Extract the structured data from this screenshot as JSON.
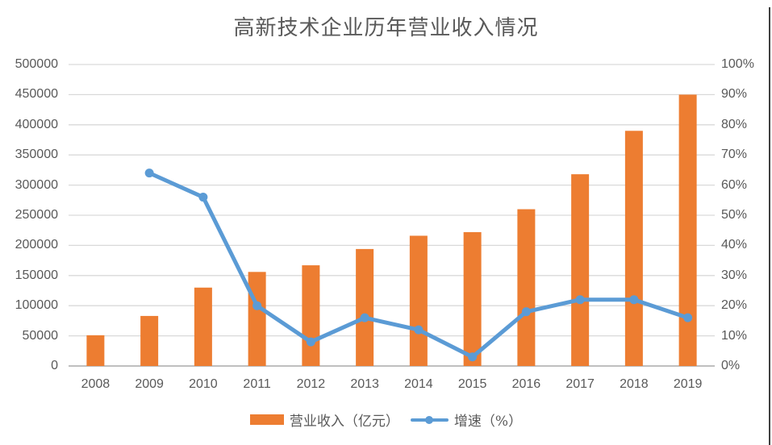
{
  "title": "高新技术企业历年营业收入情况",
  "chart_data": {
    "type": "combo-bar-line",
    "title": "高新技术企业历年营业收入情况",
    "categories": [
      "2008",
      "2009",
      "2010",
      "2011",
      "2012",
      "2013",
      "2014",
      "2015",
      "2016",
      "2017",
      "2018",
      "2019"
    ],
    "series": [
      {
        "name": "营业收入（亿元）",
        "type": "bar",
        "axis": "left",
        "color": "#ED7D31",
        "values": [
          51000,
          83000,
          130000,
          156000,
          167000,
          194000,
          216000,
          222000,
          260000,
          318000,
          390000,
          450000
        ]
      },
      {
        "name": "增速（%）",
        "type": "line",
        "axis": "right",
        "color": "#5B9BD5",
        "values": [
          null,
          64,
          56,
          20,
          8,
          16,
          12,
          3,
          18,
          22,
          22,
          16
        ]
      }
    ],
    "left_axis": {
      "min": 0,
      "max": 500000,
      "step": 50000,
      "tick_labels": [
        "0",
        "50000",
        "100000",
        "150000",
        "200000",
        "250000",
        "300000",
        "350000",
        "400000",
        "450000",
        "500000"
      ]
    },
    "right_axis": {
      "min": 0,
      "max": 100,
      "step": 10,
      "tick_labels": [
        "0%",
        "10%",
        "20%",
        "30%",
        "40%",
        "50%",
        "60%",
        "70%",
        "80%",
        "90%",
        "100%"
      ]
    },
    "grid": true,
    "legend_position": "bottom"
  },
  "colors": {
    "bar": "#ED7D31",
    "line": "#5B9BD5",
    "grid": "#D9D9D9",
    "axis_line": "#BFBFBF",
    "text": "#595959",
    "border": "#404040",
    "background": "#FFFFFF"
  }
}
